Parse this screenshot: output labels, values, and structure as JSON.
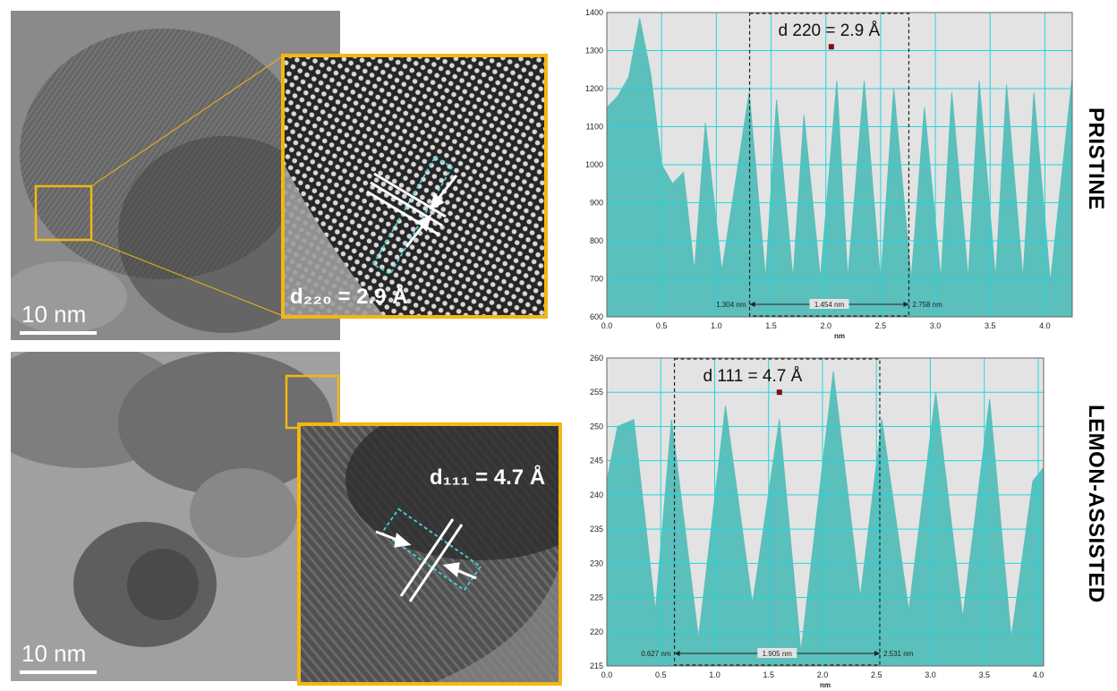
{
  "labels": {
    "scale_top": "10 nm",
    "scale_bottom": "10 nm",
    "inset_top_d": "d₂₂₀ = 2.9 Å",
    "inset_bottom_d": "d₁₁₁ = 4.7 Å",
    "side_top": "PRISTINE",
    "side_bottom": "LEMON-ASSISTED"
  },
  "colors": {
    "fill": "#5bbfbb",
    "grid": "#22d6e0",
    "background": "#e3e3e3",
    "inset_border": "#f2b713",
    "marker": "#7b1010"
  },
  "chart_data": [
    {
      "type": "area",
      "title": "d 220 = 2.9 Å",
      "xlabel": "nm",
      "ylabel": "",
      "xlim": [
        0.0,
        4.25
      ],
      "ylim": [
        600,
        1400
      ],
      "x_ticks": [
        0.0,
        0.5,
        1.0,
        1.5,
        2.0,
        2.5,
        3.0,
        3.5,
        4.0
      ],
      "x_tick_labels": [
        "0.0",
        "0.5",
        "1.0",
        "1.5",
        "2.0",
        "2.5",
        "3.0",
        "3.5",
        "4.0"
      ],
      "y_ticks": [
        600,
        700,
        800,
        900,
        1000,
        1100,
        1200,
        1300,
        1400
      ],
      "y_tick_labels": [
        "600",
        "700",
        "800",
        "900",
        "1000",
        "1100",
        "1200",
        "1300",
        "1400"
      ],
      "grid": true,
      "series": [
        {
          "values": [
            [
              0.0,
              1150
            ],
            [
              0.1,
              1180
            ],
            [
              0.2,
              1230
            ],
            [
              0.3,
              1385
            ],
            [
              0.4,
              1240
            ],
            [
              0.5,
              1000
            ],
            [
              0.6,
              950
            ],
            [
              0.7,
              980
            ],
            [
              0.8,
              720
            ],
            [
              0.9,
              1110
            ],
            [
              1.05,
              720
            ],
            [
              1.3,
              1190
            ],
            [
              1.45,
              700
            ],
            [
              1.55,
              1170
            ],
            [
              1.7,
              700
            ],
            [
              1.8,
              1130
            ],
            [
              1.95,
              700
            ],
            [
              2.1,
              1220
            ],
            [
              2.2,
              700
            ],
            [
              2.35,
              1220
            ],
            [
              2.5,
              690
            ],
            [
              2.62,
              1200
            ],
            [
              2.78,
              700
            ],
            [
              2.9,
              1150
            ],
            [
              3.05,
              700
            ],
            [
              3.15,
              1190
            ],
            [
              3.3,
              700
            ],
            [
              3.4,
              1220
            ],
            [
              3.55,
              700
            ],
            [
              3.65,
              1210
            ],
            [
              3.8,
              700
            ],
            [
              3.9,
              1190
            ],
            [
              4.05,
              690
            ],
            [
              4.25,
              1230
            ]
          ]
        }
      ],
      "annotations": {
        "marker": [
          2.05,
          1310
        ],
        "box_x": [
          1.304,
          2.758
        ],
        "measure_left": "1.304 nm",
        "measure_mid": "1.454 nm",
        "measure_right": "2.758 nm"
      }
    },
    {
      "type": "area",
      "title": "d 111 = 4.7 Å",
      "xlabel": "nm",
      "ylabel": "",
      "xlim": [
        0.0,
        4.05
      ],
      "ylim": [
        215,
        260
      ],
      "x_ticks": [
        0.0,
        0.5,
        1.0,
        1.5,
        2.0,
        2.5,
        3.0,
        3.5,
        4.0
      ],
      "x_tick_labels": [
        "0.0",
        "0.5",
        "1.0",
        "1.5",
        "2.0",
        "2.5",
        "3.0",
        "3.5",
        "4.0"
      ],
      "y_ticks": [
        215,
        220,
        225,
        230,
        235,
        240,
        245,
        250,
        255,
        260
      ],
      "y_tick_labels": [
        "215",
        "220",
        "225",
        "230",
        "235",
        "240",
        "245",
        "250",
        "255",
        "260"
      ],
      "grid": true,
      "series": [
        {
          "values": [
            [
              0.0,
              242
            ],
            [
              0.1,
              250
            ],
            [
              0.25,
              251
            ],
            [
              0.45,
              223
            ],
            [
              0.6,
              251
            ],
            [
              0.85,
              219
            ],
            [
              1.1,
              253
            ],
            [
              1.35,
              224
            ],
            [
              1.6,
              251
            ],
            [
              1.8,
              217
            ],
            [
              2.1,
              258
            ],
            [
              2.35,
              225
            ],
            [
              2.55,
              251
            ],
            [
              2.8,
              223
            ],
            [
              3.05,
              255
            ],
            [
              3.3,
              222
            ],
            [
              3.55,
              254
            ],
            [
              3.75,
              219
            ],
            [
              3.95,
              242
            ],
            [
              4.05,
              244
            ]
          ]
        }
      ],
      "annotations": {
        "marker": [
          1.6,
          255
        ],
        "box_x": [
          0.627,
          2.531
        ],
        "measure_left": "0.627 nm",
        "measure_mid": "1.905 nm",
        "measure_right": "2.531 nm"
      }
    }
  ]
}
